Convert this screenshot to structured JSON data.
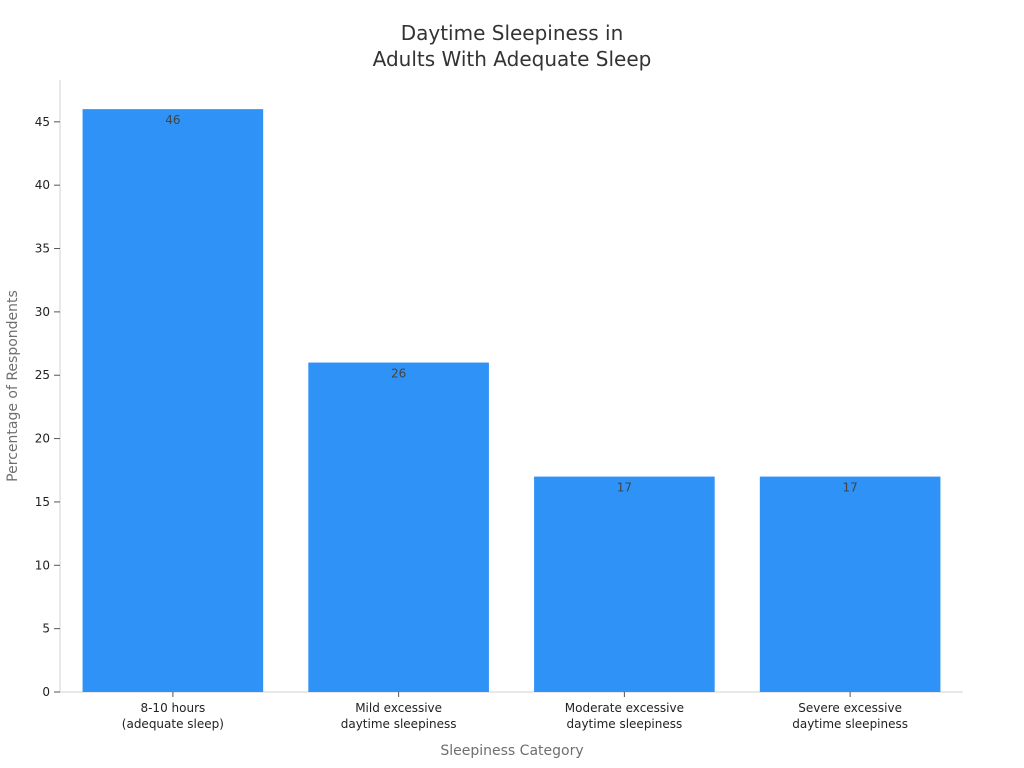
{
  "chart_data": {
    "type": "bar",
    "title_lines": [
      "Daytime Sleepiness in",
      "Adults With Adequate Sleep"
    ],
    "xlabel": "Sleepiness Category",
    "ylabel": "Percentage of Respondents",
    "categories": [
      [
        "8-10 hours",
        "(adequate sleep)"
      ],
      [
        "Mild excessive",
        "daytime sleepiness"
      ],
      [
        "Moderate excessive",
        "daytime sleepiness"
      ],
      [
        "Severe excessive",
        "daytime sleepiness"
      ]
    ],
    "values": [
      46,
      26,
      17,
      17
    ],
    "data_labels": [
      "46",
      "26",
      "17",
      "17"
    ],
    "yticks": [
      0,
      5,
      10,
      15,
      20,
      25,
      30,
      35,
      40,
      45
    ],
    "ylim": [
      0,
      48.3
    ],
    "grid": false,
    "legend": "none",
    "bar_color": "#2f92f7"
  }
}
